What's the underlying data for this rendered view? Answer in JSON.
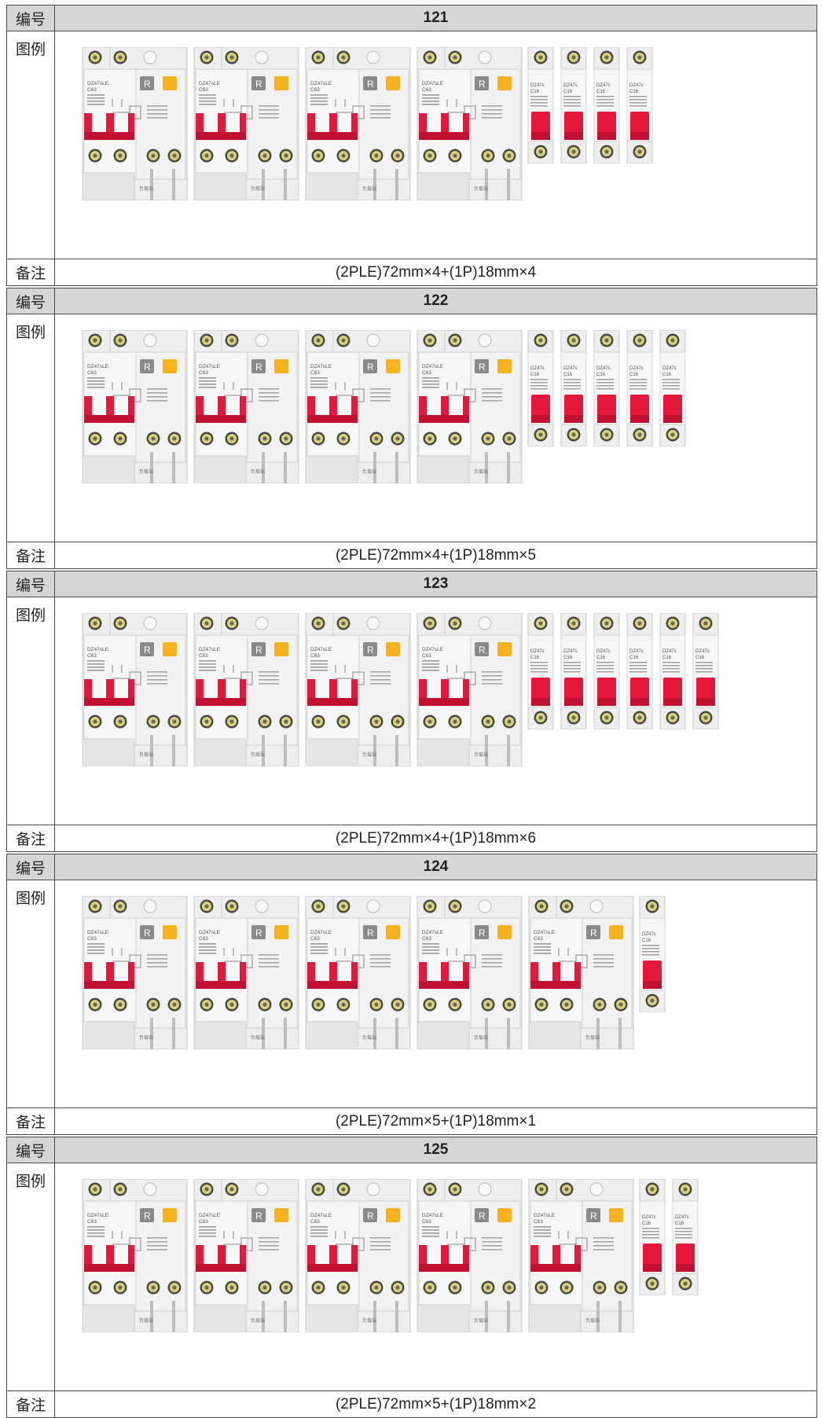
{
  "labels": {
    "id": "编号",
    "figure": "图例",
    "note": "备注"
  },
  "breaker_text": {
    "model_2ple": "DZ47sLE",
    "series_2ple": "C63",
    "model_1p": "DZ47s",
    "rating_1p": "C16",
    "reset_letter": "R",
    "load_side": "负载端"
  },
  "colors": {
    "handle": "#e5173a",
    "body": "#eeeeee",
    "test_button": "#f6b21f",
    "reset_button": "#8a8a8a",
    "header_bg": "#d6d6d6",
    "border": "#4a4a4a"
  },
  "rows": [
    {
      "id": "121",
      "count_2ple": 4,
      "count_1p": 4,
      "note": "(2PLE)72mm×4+(1P)18mm×4"
    },
    {
      "id": "122",
      "count_2ple": 4,
      "count_1p": 5,
      "note": "(2PLE)72mm×4+(1P)18mm×5"
    },
    {
      "id": "123",
      "count_2ple": 4,
      "count_1p": 6,
      "note": "(2PLE)72mm×4+(1P)18mm×6"
    },
    {
      "id": "124",
      "count_2ple": 5,
      "count_1p": 1,
      "note": "(2PLE)72mm×5+(1P)18mm×1"
    },
    {
      "id": "125",
      "count_2ple": 5,
      "count_1p": 2,
      "note": "(2PLE)72mm×5+(1P)18mm×2"
    }
  ]
}
